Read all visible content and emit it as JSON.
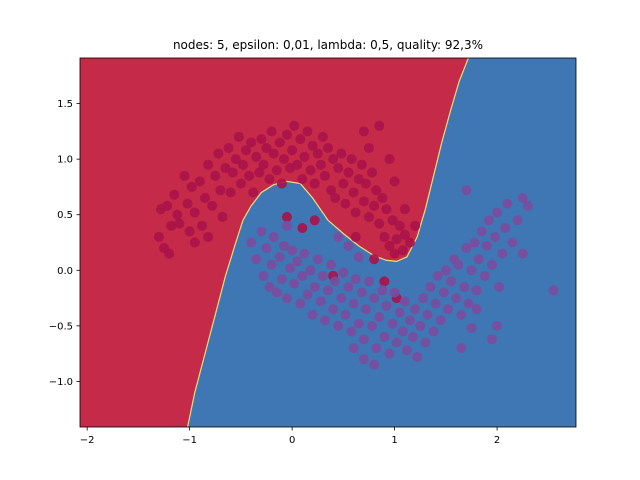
{
  "chart_data": {
    "type": "scatter",
    "title": "nodes: 5, epsilon: 0,01, lambda: 0,5, quality: 92,3%",
    "xlabel": "",
    "ylabel": "",
    "xlim": [
      -2.07,
      2.77
    ],
    "ylim": [
      -1.41,
      1.91
    ],
    "x_ticks": [
      -2,
      -1,
      0,
      1,
      2
    ],
    "y_ticks": [
      -1.0,
      -0.5,
      0.0,
      0.5,
      1.0,
      1.5
    ],
    "y_tick_labels": [
      "−1.0",
      "−0.5",
      "0.0",
      "0.5",
      "1.0",
      "1.5"
    ],
    "grid": false,
    "colors": {
      "region_class_0": "#c52a48",
      "region_class_1": "#3f77b4",
      "boundary": "#e8e07a",
      "points_class_0": "#a8124a",
      "points_class_1": "#7b4b9e"
    },
    "decision_boundary": [
      [
        -1.02,
        -1.41
      ],
      [
        -0.95,
        -1.1
      ],
      [
        -0.85,
        -0.75
      ],
      [
        -0.75,
        -0.4
      ],
      [
        -0.65,
        -0.05
      ],
      [
        -0.55,
        0.25
      ],
      [
        -0.48,
        0.45
      ],
      [
        -0.4,
        0.58
      ],
      [
        -0.3,
        0.7
      ],
      [
        -0.18,
        0.77
      ],
      [
        -0.05,
        0.8
      ],
      [
        0.08,
        0.78
      ],
      [
        0.2,
        0.65
      ],
      [
        0.35,
        0.45
      ],
      [
        0.5,
        0.33
      ],
      [
        0.65,
        0.22
      ],
      [
        0.8,
        0.13
      ],
      [
        0.92,
        0.09
      ],
      [
        1.02,
        0.08
      ],
      [
        1.12,
        0.12
      ],
      [
        1.22,
        0.3
      ],
      [
        1.3,
        0.55
      ],
      [
        1.38,
        0.85
      ],
      [
        1.46,
        1.15
      ],
      [
        1.55,
        1.45
      ],
      [
        1.63,
        1.7
      ],
      [
        1.72,
        1.91
      ]
    ],
    "series": [
      {
        "points": [
          [
            -1.28,
            0.55
          ],
          [
            -1.22,
            0.58
          ],
          [
            -1.18,
            0.4
          ],
          [
            -1.15,
            0.68
          ],
          [
            -1.1,
            0.42
          ],
          [
            -1.05,
            0.85
          ],
          [
            -1.02,
            0.6
          ],
          [
            -0.98,
            0.75
          ],
          [
            -0.95,
            0.52
          ],
          [
            -0.9,
            0.8
          ],
          [
            -0.88,
            0.4
          ],
          [
            -0.85,
            0.65
          ],
          [
            -0.82,
            0.95
          ],
          [
            -0.78,
            0.58
          ],
          [
            -0.75,
            0.85
          ],
          [
            -0.72,
            1.05
          ],
          [
            -0.7,
            0.72
          ],
          [
            -0.68,
            0.48
          ],
          [
            -0.65,
            0.92
          ],
          [
            -0.62,
            1.1
          ],
          [
            -0.6,
            0.7
          ],
          [
            -0.58,
            0.88
          ],
          [
            -0.55,
            1.0
          ],
          [
            -0.52,
            1.2
          ],
          [
            -0.5,
            0.78
          ],
          [
            -0.48,
            0.95
          ],
          [
            -0.45,
            1.08
          ],
          [
            -0.42,
            0.85
          ],
          [
            -0.4,
            1.15
          ],
          [
            -0.38,
            0.7
          ],
          [
            -0.35,
            1.02
          ],
          [
            -0.32,
            0.88
          ],
          [
            -0.3,
            1.18
          ],
          [
            -0.28,
            0.95
          ],
          [
            -0.25,
            1.1
          ],
          [
            -0.22,
            0.82
          ],
          [
            -0.2,
            1.25
          ],
          [
            -0.18,
            1.05
          ],
          [
            -0.15,
            0.9
          ],
          [
            -0.12,
            1.15
          ],
          [
            -0.1,
            0.78
          ],
          [
            -0.08,
            1.0
          ],
          [
            -0.05,
            1.22
          ],
          [
            -0.02,
            0.92
          ],
          [
            0.0,
            1.08
          ],
          [
            0.02,
            1.3
          ],
          [
            0.05,
            0.95
          ],
          [
            0.08,
            1.18
          ],
          [
            0.1,
            0.82
          ],
          [
            0.12,
            1.02
          ],
          [
            0.15,
            1.25
          ],
          [
            0.18,
            0.9
          ],
          [
            0.2,
            1.12
          ],
          [
            0.22,
            0.78
          ],
          [
            0.25,
            1.05
          ],
          [
            0.28,
            0.95
          ],
          [
            0.3,
            1.2
          ],
          [
            0.32,
            0.85
          ],
          [
            0.35,
            1.1
          ],
          [
            0.38,
            0.72
          ],
          [
            0.4,
            1.0
          ],
          [
            0.42,
            0.65
          ],
          [
            0.45,
            0.92
          ],
          [
            0.48,
            1.05
          ],
          [
            0.5,
            0.78
          ],
          [
            0.52,
            0.6
          ],
          [
            0.55,
            0.88
          ],
          [
            0.58,
            1.0
          ],
          [
            0.6,
            0.7
          ],
          [
            0.62,
            0.52
          ],
          [
            0.65,
            0.82
          ],
          [
            0.68,
            0.95
          ],
          [
            0.7,
            0.62
          ],
          [
            0.72,
            0.78
          ],
          [
            0.75,
            0.48
          ],
          [
            0.78,
            0.88
          ],
          [
            0.8,
            0.58
          ],
          [
            0.82,
            0.72
          ],
          [
            0.85,
            0.42
          ],
          [
            0.88,
            0.65
          ],
          [
            0.9,
            0.3
          ],
          [
            0.92,
            0.55
          ],
          [
            0.95,
            0.22
          ],
          [
            0.98,
            0.45
          ],
          [
            1.0,
            0.15
          ],
          [
            1.02,
            0.28
          ],
          [
            1.05,
            0.4
          ],
          [
            1.08,
            0.18
          ],
          [
            1.1,
            0.32
          ],
          [
            1.15,
            0.25
          ],
          [
            1.2,
            0.4
          ],
          [
            -1.3,
            0.3
          ],
          [
            -1.25,
            0.2
          ],
          [
            -1.2,
            0.15
          ],
          [
            -1.0,
            0.35
          ],
          [
            -0.95,
            0.25
          ],
          [
            -0.82,
            0.3
          ],
          [
            0.85,
            1.3
          ],
          [
            0.95,
            1.0
          ],
          [
            1.0,
            0.8
          ],
          [
            0.75,
            1.1
          ],
          [
            0.7,
            1.25
          ],
          [
            1.1,
            0.55
          ],
          [
            -1.12,
            0.5
          ],
          [
            0.62,
            0.3
          ],
          [
            0.8,
            0.1
          ],
          [
            0.9,
            -0.1
          ],
          [
            1.02,
            -0.25
          ],
          [
            0.4,
            -0.05
          ],
          [
            0.22,
            0.45
          ],
          [
            0.1,
            0.38
          ],
          [
            -0.05,
            0.48
          ]
        ]
      },
      {
        "points": [
          [
            -0.4,
            0.25
          ],
          [
            -0.35,
            0.1
          ],
          [
            -0.3,
            0.35
          ],
          [
            -0.28,
            -0.05
          ],
          [
            -0.25,
            0.2
          ],
          [
            -0.22,
            -0.15
          ],
          [
            -0.2,
            0.05
          ],
          [
            -0.18,
            0.3
          ],
          [
            -0.15,
            -0.2
          ],
          [
            -0.12,
            0.12
          ],
          [
            -0.1,
            -0.08
          ],
          [
            -0.08,
            0.22
          ],
          [
            -0.05,
            -0.25
          ],
          [
            -0.02,
            0.02
          ],
          [
            0.0,
            0.18
          ],
          [
            0.02,
            -0.12
          ],
          [
            0.05,
            0.08
          ],
          [
            0.08,
            -0.3
          ],
          [
            0.1,
            -0.05
          ],
          [
            0.12,
            0.15
          ],
          [
            0.15,
            -0.22
          ],
          [
            0.18,
            0.0
          ],
          [
            0.2,
            -0.4
          ],
          [
            0.22,
            -0.15
          ],
          [
            0.25,
            0.1
          ],
          [
            0.28,
            -0.28
          ],
          [
            0.3,
            -0.05
          ],
          [
            0.32,
            -0.45
          ],
          [
            0.35,
            -0.18
          ],
          [
            0.38,
            0.05
          ],
          [
            0.4,
            -0.35
          ],
          [
            0.42,
            -0.1
          ],
          [
            0.45,
            -0.5
          ],
          [
            0.48,
            -0.25
          ],
          [
            0.5,
            -0.02
          ],
          [
            0.52,
            -0.4
          ],
          [
            0.55,
            -0.15
          ],
          [
            0.58,
            -0.55
          ],
          [
            0.6,
            -0.3
          ],
          [
            0.62,
            -0.08
          ],
          [
            0.65,
            -0.48
          ],
          [
            0.68,
            -0.2
          ],
          [
            0.7,
            -0.62
          ],
          [
            0.72,
            -0.35
          ],
          [
            0.75,
            -0.1
          ],
          [
            0.78,
            -0.5
          ],
          [
            0.8,
            -0.25
          ],
          [
            0.82,
            -0.7
          ],
          [
            0.85,
            -0.42
          ],
          [
            0.88,
            -0.18
          ],
          [
            0.9,
            -0.6
          ],
          [
            0.92,
            -0.32
          ],
          [
            0.95,
            -0.75
          ],
          [
            0.98,
            -0.48
          ],
          [
            1.0,
            -0.2
          ],
          [
            1.02,
            -0.65
          ],
          [
            1.05,
            -0.38
          ],
          [
            1.08,
            -0.55
          ],
          [
            1.1,
            -0.28
          ],
          [
            1.12,
            -0.72
          ],
          [
            1.15,
            -0.45
          ],
          [
            1.18,
            -0.6
          ],
          [
            1.2,
            -0.35
          ],
          [
            1.22,
            -0.78
          ],
          [
            1.25,
            -0.5
          ],
          [
            1.28,
            -0.25
          ],
          [
            1.3,
            -0.65
          ],
          [
            1.32,
            -0.4
          ],
          [
            1.35,
            -0.15
          ],
          [
            1.38,
            -0.55
          ],
          [
            1.4,
            -0.3
          ],
          [
            1.42,
            -0.05
          ],
          [
            1.45,
            -0.45
          ],
          [
            1.48,
            -0.2
          ],
          [
            1.5,
            0.0
          ],
          [
            1.52,
            -0.35
          ],
          [
            1.55,
            -0.1
          ],
          [
            1.58,
            0.1
          ],
          [
            1.6,
            -0.25
          ],
          [
            1.62,
            0.05
          ],
          [
            1.65,
            -0.4
          ],
          [
            1.68,
            -0.15
          ],
          [
            1.7,
            0.2
          ],
          [
            1.72,
            -0.3
          ],
          [
            1.75,
            0.0
          ],
          [
            1.78,
            0.25
          ],
          [
            1.8,
            -0.18
          ],
          [
            1.82,
            0.1
          ],
          [
            1.85,
            0.35
          ],
          [
            1.88,
            -0.05
          ],
          [
            1.9,
            0.22
          ],
          [
            1.92,
            0.45
          ],
          [
            1.95,
            0.05
          ],
          [
            1.98,
            0.3
          ],
          [
            2.0,
            0.52
          ],
          [
            2.02,
            -0.15
          ],
          [
            2.05,
            0.15
          ],
          [
            2.08,
            0.38
          ],
          [
            2.1,
            0.6
          ],
          [
            2.15,
            0.25
          ],
          [
            2.2,
            0.45
          ],
          [
            2.25,
            0.15
          ],
          [
            2.3,
            0.58
          ],
          [
            2.55,
            -0.18
          ],
          [
            1.7,
            0.72
          ],
          [
            2.25,
            0.65
          ],
          [
            1.8,
            -0.35
          ],
          [
            2.0,
            -0.5
          ],
          [
            1.95,
            -0.62
          ],
          [
            1.75,
            -0.52
          ],
          [
            1.65,
            -0.7
          ],
          [
            -0.05,
            0.4
          ],
          [
            0.6,
            -0.7
          ],
          [
            0.7,
            -0.8
          ],
          [
            0.8,
            -0.85
          ],
          [
            0.65,
            0.12
          ],
          [
            0.55,
            0.22
          ],
          [
            0.45,
            0.3
          ]
        ]
      }
    ]
  }
}
